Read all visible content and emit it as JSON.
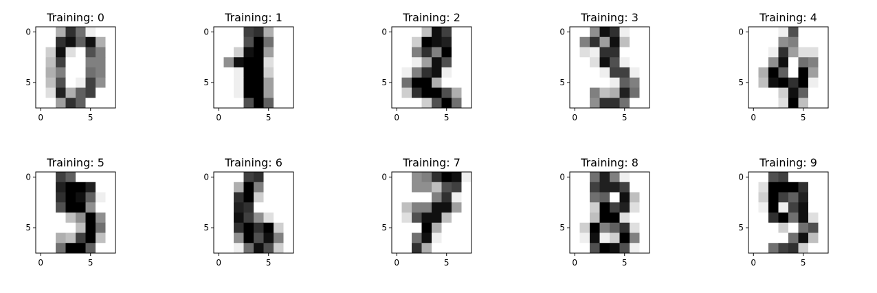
{
  "figure": {
    "title_prefix": "Training: ",
    "cmap": "gray_r",
    "value_max": 16,
    "x_ticks": [
      0,
      5
    ],
    "y_ticks": [
      0,
      5
    ],
    "colors": {
      "ink": "#000000",
      "paper": "#ffffff",
      "axis": "#000000"
    }
  },
  "chart_data": {
    "type": "heatmap",
    "title": "",
    "xlabel": "",
    "ylabel": "",
    "xlim": [
      -0.5,
      7.5
    ],
    "ylim": [
      7.5,
      -0.5
    ],
    "panels": [
      {
        "label": 0,
        "title": "Training: 0",
        "image": [
          [
            0,
            0,
            5,
            13,
            9,
            1,
            0,
            0
          ],
          [
            0,
            0,
            13,
            15,
            10,
            15,
            5,
            0
          ],
          [
            0,
            3,
            15,
            2,
            0,
            11,
            8,
            0
          ],
          [
            0,
            4,
            12,
            0,
            0,
            8,
            8,
            0
          ],
          [
            0,
            5,
            8,
            0,
            0,
            9,
            8,
            0
          ],
          [
            0,
            4,
            11,
            0,
            1,
            12,
            7,
            0
          ],
          [
            0,
            2,
            14,
            5,
            10,
            12,
            0,
            0
          ],
          [
            0,
            0,
            6,
            13,
            10,
            0,
            0,
            0
          ]
        ]
      },
      {
        "label": 1,
        "title": "Training: 1",
        "image": [
          [
            0,
            0,
            0,
            12,
            13,
            5,
            0,
            0
          ],
          [
            0,
            0,
            0,
            11,
            16,
            9,
            0,
            0
          ],
          [
            0,
            0,
            3,
            15,
            16,
            6,
            0,
            0
          ],
          [
            0,
            7,
            15,
            16,
            16,
            2,
            0,
            0
          ],
          [
            0,
            0,
            1,
            16,
            16,
            3,
            0,
            0
          ],
          [
            0,
            0,
            1,
            16,
            16,
            6,
            0,
            0
          ],
          [
            0,
            0,
            1,
            16,
            16,
            6,
            0,
            0
          ],
          [
            0,
            0,
            0,
            11,
            16,
            10,
            0,
            0
          ]
        ]
      },
      {
        "label": 2,
        "title": "Training: 2",
        "image": [
          [
            0,
            0,
            0,
            4,
            15,
            12,
            0,
            0
          ],
          [
            0,
            0,
            3,
            16,
            15,
            14,
            0,
            0
          ],
          [
            0,
            0,
            8,
            13,
            8,
            16,
            0,
            0
          ],
          [
            0,
            0,
            1,
            6,
            15,
            11,
            0,
            0
          ],
          [
            0,
            1,
            8,
            13,
            15,
            1,
            0,
            0
          ],
          [
            0,
            9,
            16,
            16,
            5,
            0,
            0,
            0
          ],
          [
            0,
            3,
            13,
            16,
            16,
            11,
            5,
            0
          ],
          [
            0,
            0,
            0,
            3,
            11,
            16,
            9,
            0
          ]
        ]
      },
      {
        "label": 3,
        "title": "Training: 3",
        "image": [
          [
            0,
            0,
            7,
            15,
            13,
            1,
            0,
            0
          ],
          [
            0,
            8,
            13,
            6,
            15,
            4,
            0,
            0
          ],
          [
            0,
            2,
            1,
            13,
            13,
            0,
            0,
            0
          ],
          [
            0,
            0,
            2,
            15,
            11,
            1,
            0,
            0
          ],
          [
            0,
            0,
            0,
            1,
            12,
            12,
            1,
            0
          ],
          [
            0,
            0,
            0,
            0,
            1,
            10,
            8,
            0
          ],
          [
            0,
            0,
            8,
            4,
            5,
            14,
            9,
            0
          ],
          [
            0,
            0,
            7,
            13,
            13,
            9,
            0,
            0
          ]
        ]
      },
      {
        "label": 4,
        "title": "Training: 4",
        "image": [
          [
            0,
            0,
            0,
            1,
            11,
            0,
            0,
            0
          ],
          [
            0,
            0,
            0,
            7,
            8,
            0,
            0,
            0
          ],
          [
            0,
            0,
            1,
            13,
            6,
            2,
            2,
            0
          ],
          [
            0,
            0,
            7,
            15,
            0,
            9,
            8,
            0
          ],
          [
            0,
            5,
            16,
            10,
            0,
            16,
            6,
            0
          ],
          [
            0,
            4,
            15,
            16,
            13,
            16,
            1,
            0
          ],
          [
            0,
            0,
            0,
            3,
            15,
            10,
            0,
            0
          ],
          [
            0,
            0,
            0,
            2,
            16,
            4,
            0,
            0
          ]
        ]
      },
      {
        "label": 5,
        "title": "Training: 5",
        "image": [
          [
            0,
            0,
            12,
            10,
            0,
            0,
            0,
            0
          ],
          [
            0,
            0,
            14,
            16,
            16,
            14,
            0,
            0
          ],
          [
            0,
            0,
            13,
            16,
            15,
            10,
            1,
            0
          ],
          [
            0,
            0,
            11,
            16,
            16,
            7,
            0,
            0
          ],
          [
            0,
            0,
            0,
            4,
            7,
            16,
            7,
            0
          ],
          [
            0,
            0,
            0,
            0,
            4,
            16,
            9,
            0
          ],
          [
            0,
            0,
            5,
            4,
            12,
            16,
            4,
            0
          ],
          [
            0,
            0,
            9,
            16,
            16,
            10,
            0,
            0
          ]
        ]
      },
      {
        "label": 6,
        "title": "Training: 6",
        "image": [
          [
            0,
            0,
            0,
            12,
            13,
            0,
            0,
            0
          ],
          [
            0,
            0,
            5,
            16,
            8,
            0,
            0,
            0
          ],
          [
            0,
            0,
            13,
            16,
            3,
            0,
            0,
            0
          ],
          [
            0,
            0,
            14,
            13,
            0,
            0,
            0,
            0
          ],
          [
            0,
            0,
            15,
            12,
            7,
            2,
            0,
            0
          ],
          [
            0,
            0,
            13,
            16,
            13,
            16,
            3,
            0
          ],
          [
            0,
            0,
            7,
            16,
            11,
            15,
            8,
            0
          ],
          [
            0,
            0,
            1,
            9,
            15,
            11,
            3,
            0
          ]
        ]
      },
      {
        "label": 7,
        "title": "Training: 7",
        "image": [
          [
            0,
            0,
            7,
            8,
            13,
            16,
            15,
            1
          ],
          [
            0,
            0,
            7,
            7,
            4,
            11,
            12,
            0
          ],
          [
            0,
            0,
            0,
            0,
            8,
            13,
            1,
            0
          ],
          [
            0,
            4,
            8,
            8,
            15,
            15,
            6,
            0
          ],
          [
            0,
            2,
            11,
            15,
            15,
            4,
            0,
            0
          ],
          [
            0,
            0,
            0,
            16,
            5,
            0,
            0,
            0
          ],
          [
            0,
            0,
            9,
            15,
            1,
            0,
            0,
            0
          ],
          [
            0,
            0,
            13,
            5,
            0,
            0,
            0,
            0
          ]
        ]
      },
      {
        "label": 8,
        "title": "Training: 8",
        "image": [
          [
            0,
            0,
            9,
            14,
            8,
            1,
            0,
            0
          ],
          [
            0,
            0,
            12,
            14,
            14,
            12,
            0,
            0
          ],
          [
            0,
            0,
            9,
            10,
            0,
            15,
            4,
            0
          ],
          [
            0,
            0,
            3,
            16,
            12,
            14,
            2,
            0
          ],
          [
            0,
            0,
            4,
            16,
            16,
            2,
            0,
            0
          ],
          [
            0,
            3,
            16,
            8,
            10,
            13,
            2,
            0
          ],
          [
            0,
            1,
            15,
            1,
            3,
            16,
            8,
            0
          ],
          [
            0,
            0,
            11,
            16,
            15,
            11,
            1,
            0
          ]
        ]
      },
      {
        "label": 9,
        "title": "Training: 9",
        "image": [
          [
            0,
            0,
            11,
            12,
            0,
            0,
            0,
            0
          ],
          [
            0,
            2,
            16,
            16,
            16,
            13,
            0,
            0
          ],
          [
            0,
            3,
            16,
            12,
            10,
            14,
            0,
            0
          ],
          [
            0,
            1,
            16,
            1,
            12,
            15,
            0,
            0
          ],
          [
            0,
            0,
            13,
            16,
            9,
            15,
            2,
            0
          ],
          [
            0,
            0,
            0,
            3,
            0,
            9,
            11,
            0
          ],
          [
            0,
            0,
            0,
            0,
            9,
            15,
            4,
            0
          ],
          [
            0,
            0,
            9,
            12,
            13,
            3,
            0,
            0
          ]
        ]
      }
    ]
  }
}
